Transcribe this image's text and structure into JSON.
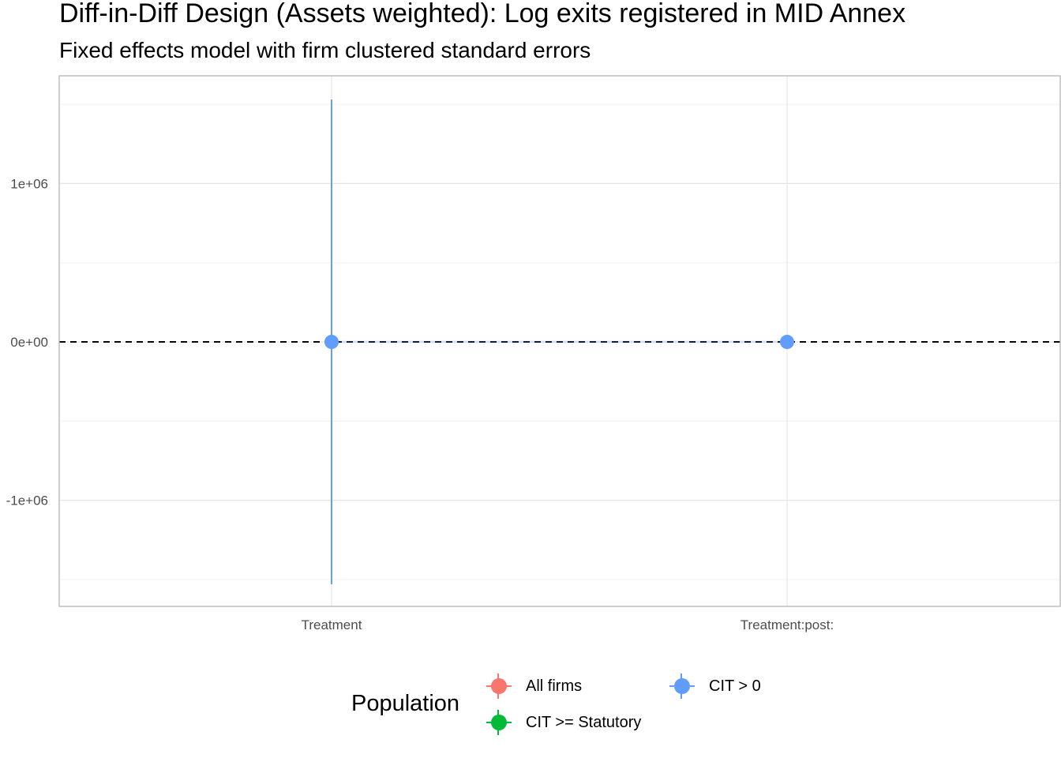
{
  "chart_data": {
    "type": "scatter",
    "title": "Diff-in-Diff Design (Assets weighted): Log exits registered in MID Annex",
    "subtitle": "Fixed effects model with firm clustered standard errors",
    "xlabel": "",
    "ylabel": "",
    "categories": [
      "Treatment",
      "Treatment:post:"
    ],
    "ylim": [
      -1670000,
      1680000
    ],
    "y_ticks": [
      -1000000,
      0,
      1000000
    ],
    "y_tick_labels": [
      "-1e+06",
      "0e+00",
      "1e+06"
    ],
    "reference_line": {
      "y": 0,
      "style": "dashed",
      "color": "#000000"
    },
    "grid": true,
    "legend": {
      "title": "Population",
      "position": "bottom",
      "entries": [
        {
          "name": "All firms",
          "color": "#F8766D"
        },
        {
          "name": "CIT >= Statutory",
          "color": "#00BA38"
        },
        {
          "name": "CIT > 0",
          "color": "#619CFF"
        }
      ]
    },
    "series": [
      {
        "name": "CIT > 0",
        "color": "#619CFF",
        "points": [
          {
            "category": "Treatment",
            "y": 0,
            "lower": -1530000,
            "upper": 1530000
          },
          {
            "category": "Treatment:post:",
            "y": 0,
            "lower": -2000,
            "upper": 2000
          }
        ]
      }
    ]
  }
}
